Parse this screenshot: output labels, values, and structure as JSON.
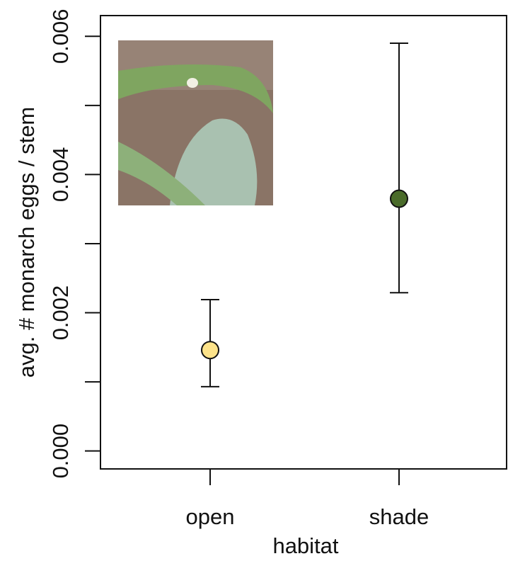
{
  "chart_data": {
    "type": "errorpoint",
    "x_label": "habitat",
    "y_label": "avg. # monarch eggs / stem",
    "categories": [
      "open",
      "shade"
    ],
    "values": [
      0.00146,
      0.00365
    ],
    "lower": [
      0.00093,
      0.00229
    ],
    "upper": [
      0.00219,
      0.0059
    ],
    "colors": [
      "#fde38a",
      "#4a6b2a"
    ],
    "ylim": [
      -0.00026,
      0.0063
    ],
    "yticks": [
      {
        "value": 0,
        "label": "0.000"
      },
      0.002,
      0.004,
      0.006
    ],
    "minor_yticks": [
      0.001,
      0.003,
      0.005
    ]
  }
}
